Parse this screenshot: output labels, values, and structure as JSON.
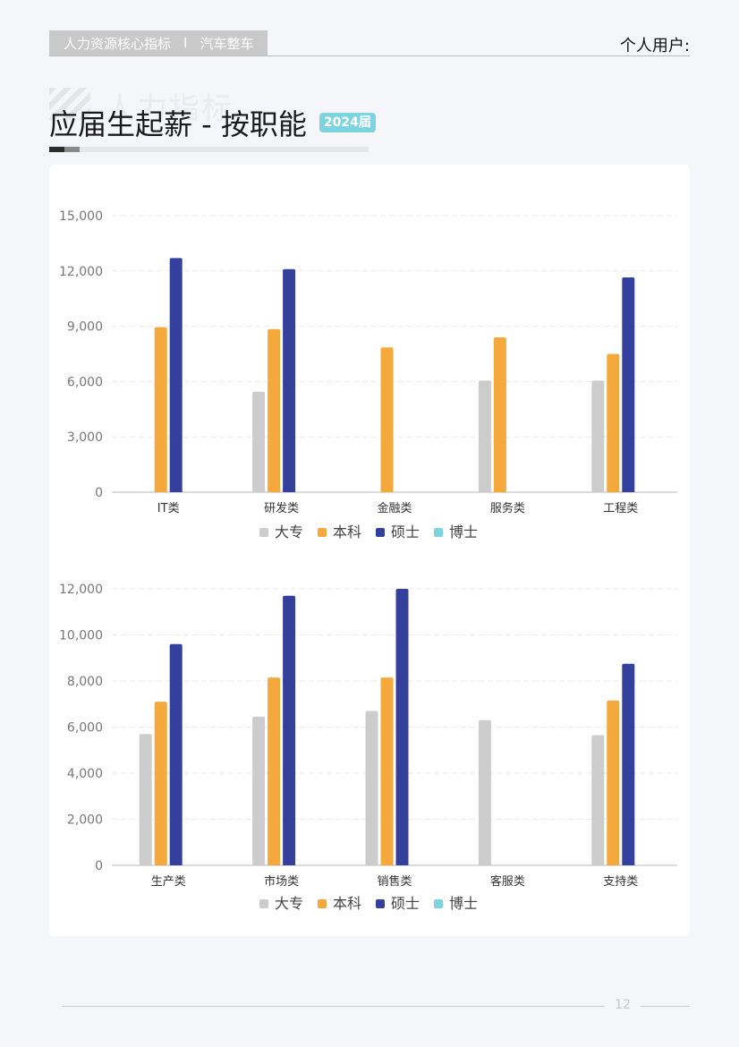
{
  "header": {
    "report_name": "人力资源核心指标",
    "separator": "I",
    "industry": "汽车整车",
    "user_label": "个人用户:"
  },
  "watermark_text": "人力指标",
  "title": {
    "text": "应届生起薪 - 按职能",
    "badge": "2024届"
  },
  "page_number": "12",
  "colors": {
    "大专": "#cccccc",
    "本科": "#f5a93d",
    "硕士": "#353f9c",
    "博士": "#7dd3df"
  },
  "chart_data": [
    {
      "type": "bar",
      "categories": [
        "IT类",
        "研发类",
        "金融类",
        "服务类",
        "工程类"
      ],
      "series": [
        {
          "name": "大专",
          "values": [
            null,
            5450,
            null,
            6050,
            6050
          ]
        },
        {
          "name": "本科",
          "values": [
            8950,
            8850,
            7850,
            8400,
            7500
          ]
        },
        {
          "name": "硕士",
          "values": [
            12700,
            12100,
            null,
            null,
            11650
          ]
        },
        {
          "name": "博士",
          "values": [
            null,
            null,
            null,
            null,
            null
          ]
        }
      ],
      "yticks": [
        "15,000",
        "12,000",
        "9,000",
        "6,000",
        "3,000",
        "0"
      ],
      "ylim": [
        0,
        15000
      ],
      "grid": true,
      "legend_position": "bottom"
    },
    {
      "type": "bar",
      "categories": [
        "生产类",
        "市场类",
        "销售类",
        "客服类",
        "支持类"
      ],
      "series": [
        {
          "name": "大专",
          "values": [
            5700,
            6450,
            6700,
            6300,
            5650
          ]
        },
        {
          "name": "本科",
          "values": [
            7100,
            8150,
            8150,
            null,
            7150
          ]
        },
        {
          "name": "硕士",
          "values": [
            9600,
            11700,
            12000,
            null,
            8750
          ]
        },
        {
          "name": "博士",
          "values": [
            null,
            null,
            null,
            null,
            null
          ]
        }
      ],
      "yticks": [
        "12,000",
        "10,000",
        "8,000",
        "6,000",
        "4,000",
        "2,000",
        "0"
      ],
      "ylim": [
        0,
        12000
      ],
      "grid": true,
      "legend_position": "bottom"
    }
  ]
}
